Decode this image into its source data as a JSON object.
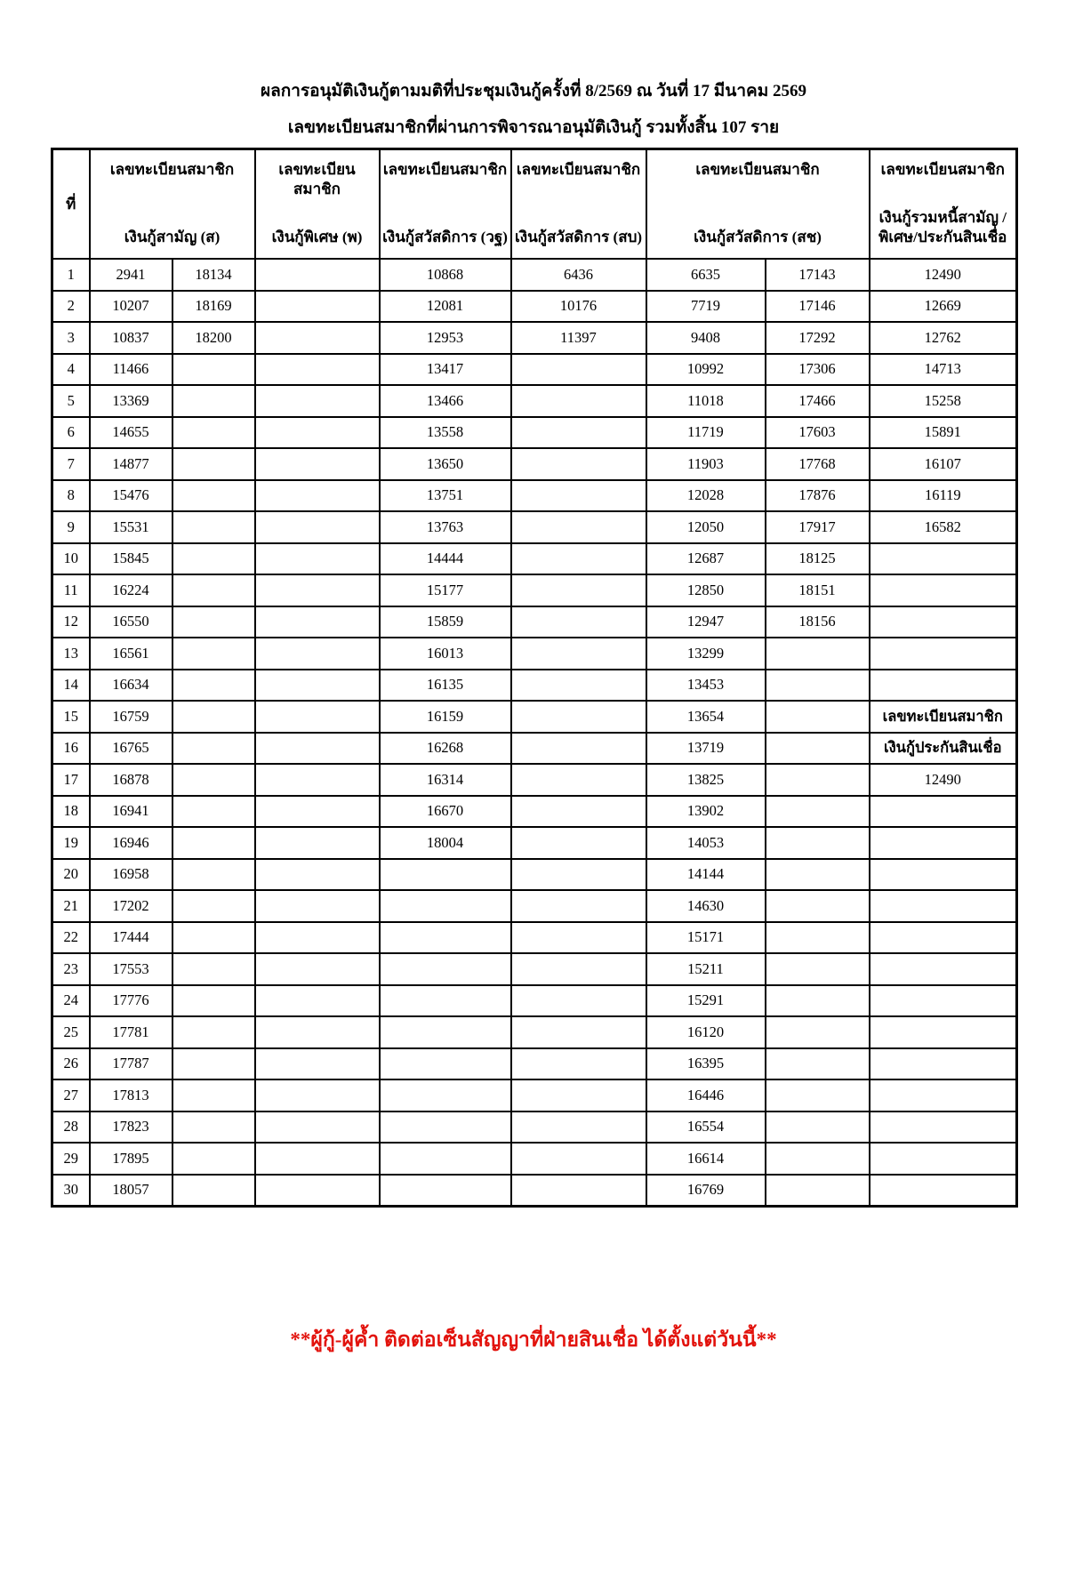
{
  "page": {
    "background": "#ffffff",
    "border_color": "#000000"
  },
  "title": {
    "line1": "ผลการอนุมัติเงินกู้ตามมติที่ประชุมเงินกู้ครั้งที่ 8/2569  ณ วันที่ 17 มีนาคม 2569",
    "line2": "เลขทะเบียนสมาชิกที่ผ่านการพิจารณาอนุมัติเงินกู้ รวมทั้งสิ้น 107  ราย"
  },
  "table": {
    "no_header": "ที่",
    "headers": [
      {
        "top": "เลขทะเบียนสมาชิก",
        "bottom": "เงินกู้สามัญ (ส)",
        "colspan": 2
      },
      {
        "top": "เลขทะเบียนสมาชิก",
        "bottom": "เงินกู้พิเศษ (พ)",
        "colspan": 1
      },
      {
        "top": "เลขทะเบียนสมาชิก",
        "bottom": "เงินกู้สวัสดิการ (วฐ)",
        "colspan": 1
      },
      {
        "top": "เลขทะเบียนสมาชิก",
        "bottom": "เงินกู้สวัสดิการ (สบ)",
        "colspan": 1
      },
      {
        "top": "เลขทะเบียนสมาชิก",
        "bottom": "เงินกู้สวัสดิการ (สช)",
        "colspan": 2
      },
      {
        "top": "เลขทะเบียนสมาชิก",
        "bottom": "เงินกู้รวมหนี้สามัญ /",
        "bottom2": "พิเศษ/ประกันสินเชื่อ",
        "colspan": 1
      }
    ],
    "embedded_header_rows": [
      15,
      16
    ],
    "rows": [
      [
        "1",
        "2941",
        "18134",
        "",
        "10868",
        "6436",
        "6635",
        "17143",
        "12490"
      ],
      [
        "2",
        "10207",
        "18169",
        "",
        "12081",
        "10176",
        "7719",
        "17146",
        "12669"
      ],
      [
        "3",
        "10837",
        "18200",
        "",
        "12953",
        "11397",
        "9408",
        "17292",
        "12762"
      ],
      [
        "4",
        "11466",
        "",
        "",
        "13417",
        "",
        "10992",
        "17306",
        "14713"
      ],
      [
        "5",
        "13369",
        "",
        "",
        "13466",
        "",
        "11018",
        "17466",
        "15258"
      ],
      [
        "6",
        "14655",
        "",
        "",
        "13558",
        "",
        "11719",
        "17603",
        "15891"
      ],
      [
        "7",
        "14877",
        "",
        "",
        "13650",
        "",
        "11903",
        "17768",
        "16107"
      ],
      [
        "8",
        "15476",
        "",
        "",
        "13751",
        "",
        "12028",
        "17876",
        "16119"
      ],
      [
        "9",
        "15531",
        "",
        "",
        "13763",
        "",
        "12050",
        "17917",
        "16582"
      ],
      [
        "10",
        "15845",
        "",
        "",
        "14444",
        "",
        "12687",
        "18125",
        ""
      ],
      [
        "11",
        "16224",
        "",
        "",
        "15177",
        "",
        "12850",
        "18151",
        ""
      ],
      [
        "12",
        "16550",
        "",
        "",
        "15859",
        "",
        "12947",
        "18156",
        ""
      ],
      [
        "13",
        "16561",
        "",
        "",
        "16013",
        "",
        "13299",
        "",
        ""
      ],
      [
        "14",
        "16634",
        "",
        "",
        "16135",
        "",
        "13453",
        "",
        ""
      ],
      [
        "15",
        "16759",
        "",
        "",
        "16159",
        "",
        "13654",
        "",
        "เลขทะเบียนสมาชิก"
      ],
      [
        "16",
        "16765",
        "",
        "",
        "16268",
        "",
        "13719",
        "",
        "เงินกู้ประกันสินเชื่อ"
      ],
      [
        "17",
        "16878",
        "",
        "",
        "16314",
        "",
        "13825",
        "",
        "12490"
      ],
      [
        "18",
        "16941",
        "",
        "",
        "16670",
        "",
        "13902",
        "",
        ""
      ],
      [
        "19",
        "16946",
        "",
        "",
        "18004",
        "",
        "14053",
        "",
        ""
      ],
      [
        "20",
        "16958",
        "",
        "",
        "",
        "",
        "14144",
        "",
        ""
      ],
      [
        "21",
        "17202",
        "",
        "",
        "",
        "",
        "14630",
        "",
        ""
      ],
      [
        "22",
        "17444",
        "",
        "",
        "",
        "",
        "15171",
        "",
        ""
      ],
      [
        "23",
        "17553",
        "",
        "",
        "",
        "",
        "15211",
        "",
        ""
      ],
      [
        "24",
        "17776",
        "",
        "",
        "",
        "",
        "15291",
        "",
        ""
      ],
      [
        "25",
        "17781",
        "",
        "",
        "",
        "",
        "16120",
        "",
        ""
      ],
      [
        "26",
        "17787",
        "",
        "",
        "",
        "",
        "16395",
        "",
        ""
      ],
      [
        "27",
        "17813",
        "",
        "",
        "",
        "",
        "16446",
        "",
        ""
      ],
      [
        "28",
        "17823",
        "",
        "",
        "",
        "",
        "16554",
        "",
        ""
      ],
      [
        "29",
        "17895",
        "",
        "",
        "",
        "",
        "16614",
        "",
        ""
      ],
      [
        "30",
        "18057",
        "",
        "",
        "",
        "",
        "16769",
        "",
        ""
      ]
    ]
  },
  "footer": {
    "note": "**ผู้กู้-ผู้ค้ำ ติดต่อเซ็นสัญญาที่ฝ่ายสินเชื่อ ได้ตั้งแต่วันนี้**",
    "color": "#e2120c"
  }
}
